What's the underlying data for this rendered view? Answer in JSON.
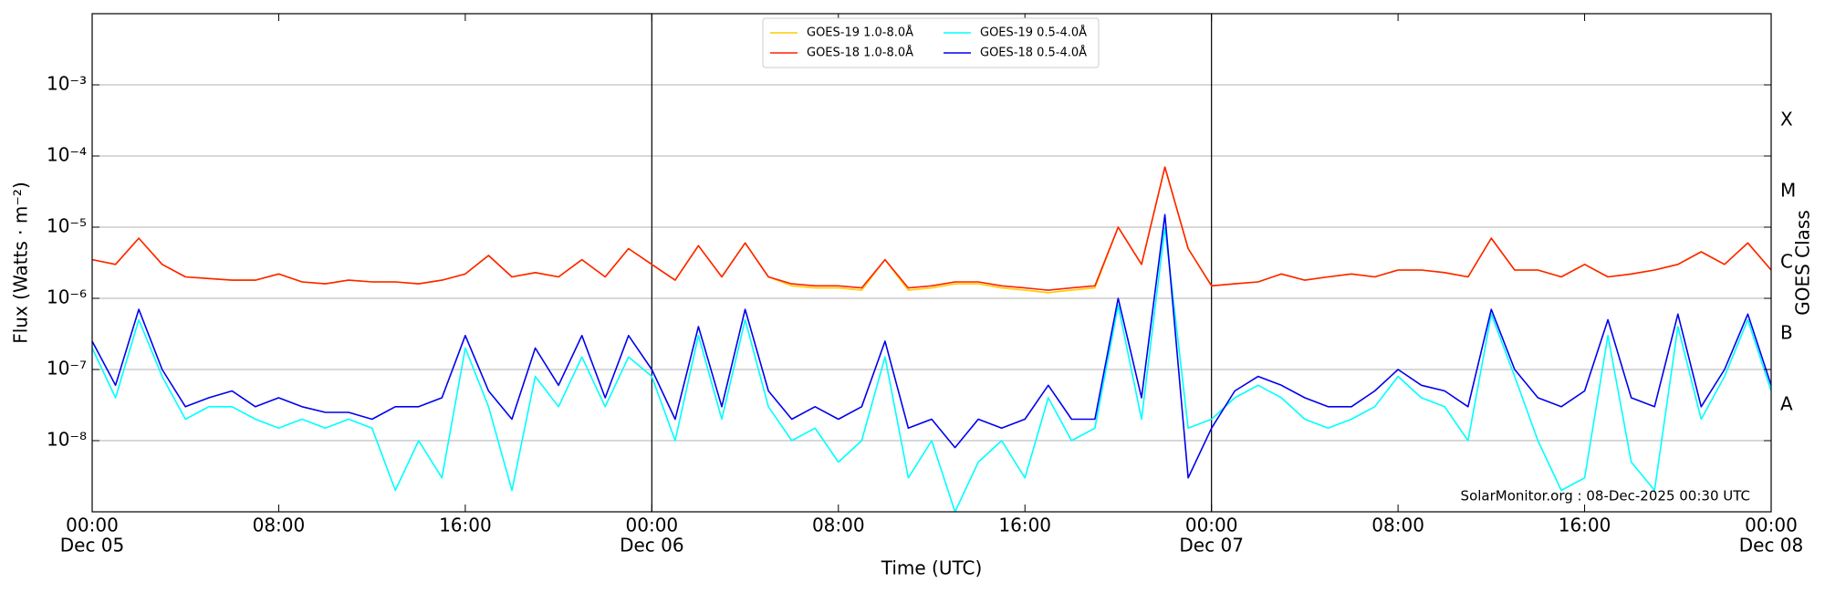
{
  "chart_data": {
    "type": "line",
    "xlabel": "Time (UTC)",
    "ylabel": "Flux (Watts · m⁻²)",
    "y2label": "GOES Class",
    "annotation": "SolarMonitor.org : 08-Dec-2025 00:30 UTC",
    "log_scale": true,
    "grid": true,
    "legend": "top-center",
    "xlim": [
      0,
      72
    ],
    "xticks": [
      {
        "value": 0,
        "label": "00:00"
      },
      {
        "value": 8,
        "label": "08:00"
      },
      {
        "value": 16,
        "label": "16:00"
      },
      {
        "value": 24,
        "label": "00:00"
      },
      {
        "value": 32,
        "label": "08:00"
      },
      {
        "value": 40,
        "label": "16:00"
      },
      {
        "value": 48,
        "label": "00:00"
      },
      {
        "value": 56,
        "label": "08:00"
      },
      {
        "value": 64,
        "label": "16:00"
      },
      {
        "value": 72,
        "label": "00:00"
      }
    ],
    "date_labels": [
      {
        "value": 0,
        "label": "Dec 05"
      },
      {
        "value": 24,
        "label": "Dec 06"
      },
      {
        "value": 48,
        "label": "Dec 07"
      },
      {
        "value": 72,
        "label": "Dec 08"
      }
    ],
    "day_lines": [
      24,
      48
    ],
    "ylim": [
      1e-09,
      0.01
    ],
    "yticks": [
      {
        "value": 1e-08,
        "label": "10⁻⁸"
      },
      {
        "value": 1e-07,
        "label": "10⁻⁷"
      },
      {
        "value": 1e-06,
        "label": "10⁻⁶"
      },
      {
        "value": 1e-05,
        "label": "10⁻⁵"
      },
      {
        "value": 0.0001,
        "label": "10⁻⁴"
      },
      {
        "value": 0.001,
        "label": "10⁻³"
      }
    ],
    "class_labels": [
      {
        "value": 3.16e-08,
        "label": "A"
      },
      {
        "value": 3.16e-07,
        "label": "B"
      },
      {
        "value": 3.16e-06,
        "label": "C"
      },
      {
        "value": 3.16e-05,
        "label": "M"
      },
      {
        "value": 0.000316,
        "label": "X"
      }
    ],
    "x": [
      0,
      1,
      2,
      3,
      4,
      5,
      6,
      7,
      8,
      9,
      10,
      11,
      12,
      13,
      14,
      15,
      16,
      17,
      18,
      19,
      20,
      21,
      22,
      23,
      24,
      25,
      26,
      27,
      28,
      29,
      30,
      31,
      32,
      33,
      34,
      35,
      36,
      37,
      38,
      39,
      40,
      41,
      42,
      43,
      44,
      45,
      46,
      47,
      48,
      49,
      50,
      51,
      52,
      53,
      54,
      55,
      56,
      57,
      58,
      59,
      60,
      61,
      62,
      63,
      64,
      65,
      66,
      67,
      68,
      69,
      70,
      71,
      72
    ],
    "series": [
      {
        "name": "GOES-19 1.0-8.0Å",
        "color": "#ffcc00",
        "values": [
          3.5e-06,
          3e-06,
          7e-06,
          3e-06,
          2e-06,
          1.9e-06,
          1.8e-06,
          1.8e-06,
          2.2e-06,
          1.7e-06,
          1.6e-06,
          1.8e-06,
          1.7e-06,
          1.7e-06,
          1.6e-06,
          1.8e-06,
          2.2e-06,
          4e-06,
          2e-06,
          2.3e-06,
          2e-06,
          3.5e-06,
          2e-06,
          5e-06,
          3e-06,
          1.8e-06,
          5.5e-06,
          2e-06,
          6e-06,
          2e-06,
          1.5e-06,
          1.4e-06,
          1.4e-06,
          1.3e-06,
          3.5e-06,
          1.3e-06,
          1.4e-06,
          1.6e-06,
          1.6e-06,
          1.4e-06,
          1.3e-06,
          1.2e-06,
          1.3e-06,
          1.4e-06,
          1e-05,
          3e-06,
          7e-05,
          5e-06,
          1.5e-06,
          1.6e-06,
          1.7e-06,
          2.2e-06,
          1.8e-06,
          2e-06,
          2.2e-06,
          2e-06,
          2.5e-06,
          2.5e-06,
          2.3e-06,
          2e-06,
          7e-06,
          2.5e-06,
          2.5e-06,
          2e-06,
          3e-06,
          2e-06,
          2.2e-06,
          2.5e-06,
          3e-06,
          4.5e-06,
          3e-06,
          6e-06,
          2.5e-06
        ]
      },
      {
        "name": "GOES-18 1.0-8.0Å",
        "color": "#ff2200",
        "values": [
          3.5e-06,
          3e-06,
          7e-06,
          3e-06,
          2e-06,
          1.9e-06,
          1.8e-06,
          1.8e-06,
          2.2e-06,
          1.7e-06,
          1.6e-06,
          1.8e-06,
          1.7e-06,
          1.7e-06,
          1.6e-06,
          1.8e-06,
          2.2e-06,
          4e-06,
          2e-06,
          2.3e-06,
          2e-06,
          3.5e-06,
          2e-06,
          5e-06,
          3e-06,
          1.8e-06,
          5.5e-06,
          2e-06,
          6e-06,
          2e-06,
          1.6e-06,
          1.5e-06,
          1.5e-06,
          1.4e-06,
          3.5e-06,
          1.4e-06,
          1.5e-06,
          1.7e-06,
          1.7e-06,
          1.5e-06,
          1.4e-06,
          1.3e-06,
          1.4e-06,
          1.5e-06,
          1e-05,
          3e-06,
          7e-05,
          5e-06,
          1.5e-06,
          1.6e-06,
          1.7e-06,
          2.2e-06,
          1.8e-06,
          2e-06,
          2.2e-06,
          2e-06,
          2.5e-06,
          2.5e-06,
          2.3e-06,
          2e-06,
          7e-06,
          2.5e-06,
          2.5e-06,
          2e-06,
          3e-06,
          2e-06,
          2.2e-06,
          2.5e-06,
          3e-06,
          4.5e-06,
          3e-06,
          6e-06,
          2.5e-06
        ]
      },
      {
        "name": "GOES-19 0.5-4.0Å",
        "color": "#00ffff",
        "values": [
          2e-07,
          4e-08,
          5e-07,
          8e-08,
          2e-08,
          3e-08,
          3e-08,
          2e-08,
          1.5e-08,
          2e-08,
          1.5e-08,
          2e-08,
          1.5e-08,
          2e-09,
          1e-08,
          3e-09,
          2e-07,
          3e-08,
          2e-09,
          8e-08,
          3e-08,
          1.5e-07,
          3e-08,
          1.5e-07,
          8e-08,
          1e-08,
          3e-07,
          2e-08,
          5e-07,
          3e-08,
          1e-08,
          1.5e-08,
          5e-09,
          1e-08,
          1.5e-07,
          3e-09,
          1e-08,
          1e-09,
          5e-09,
          1e-08,
          3e-09,
          4e-08,
          1e-08,
          1.5e-08,
          8e-07,
          2e-08,
          1e-05,
          1.5e-08,
          2e-08,
          4e-08,
          6e-08,
          4e-08,
          2e-08,
          1.5e-08,
          2e-08,
          3e-08,
          8e-08,
          4e-08,
          3e-08,
          1e-08,
          6e-07,
          8e-08,
          1e-08,
          2e-09,
          3e-09,
          3e-07,
          5e-09,
          2e-09,
          4e-07,
          2e-08,
          8e-08,
          5e-07,
          5e-08
        ]
      },
      {
        "name": "GOES-18 0.5-4.0Å",
        "color": "#0000ee",
        "values": [
          2.5e-07,
          6e-08,
          7e-07,
          1e-07,
          3e-08,
          4e-08,
          5e-08,
          3e-08,
          4e-08,
          3e-08,
          2.5e-08,
          2.5e-08,
          2e-08,
          3e-08,
          3e-08,
          4e-08,
          3e-07,
          5e-08,
          2e-08,
          2e-07,
          6e-08,
          3e-07,
          4e-08,
          3e-07,
          1e-07,
          2e-08,
          4e-07,
          3e-08,
          7e-07,
          5e-08,
          2e-08,
          3e-08,
          2e-08,
          3e-08,
          2.5e-07,
          1.5e-08,
          2e-08,
          8e-09,
          2e-08,
          1.5e-08,
          2e-08,
          6e-08,
          2e-08,
          2e-08,
          1e-06,
          4e-08,
          1.5e-05,
          3e-09,
          1.5e-08,
          5e-08,
          8e-08,
          6e-08,
          4e-08,
          3e-08,
          3e-08,
          5e-08,
          1e-07,
          6e-08,
          5e-08,
          3e-08,
          7e-07,
          1e-07,
          4e-08,
          3e-08,
          5e-08,
          5e-07,
          4e-08,
          3e-08,
          6e-07,
          3e-08,
          1e-07,
          6e-07,
          6e-08
        ]
      }
    ]
  }
}
